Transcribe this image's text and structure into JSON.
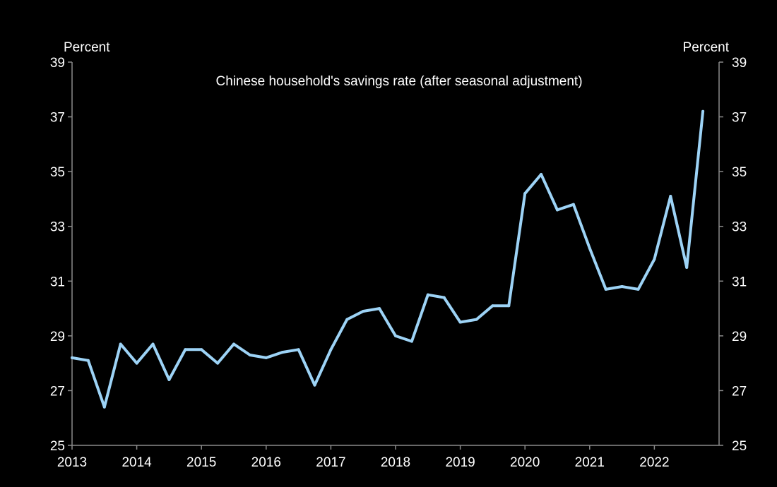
{
  "chart_data": {
    "type": "line",
    "title": "Chinese household's savings rate (after seasonal adjustment)",
    "left_unit": "Percent",
    "right_unit": "Percent",
    "ylim": [
      25,
      39
    ],
    "yticks": [
      25,
      27,
      29,
      31,
      33,
      35,
      37,
      39
    ],
    "xlim": [
      2013,
      2023
    ],
    "xticks": [
      "2013",
      "2014",
      "2015",
      "2016",
      "2017",
      "2018",
      "2019",
      "2020",
      "2021",
      "2022"
    ],
    "grid": false,
    "colors": {
      "background": "#000000",
      "line": "#9dd3f6",
      "axis": "#8a8a8a",
      "text": "#ffffff"
    },
    "series": [
      {
        "x": [
          "2013-Q1",
          "2013-Q2",
          "2013-Q3",
          "2013-Q4",
          "2014-Q1",
          "2014-Q2",
          "2014-Q3",
          "2014-Q4",
          "2015-Q1",
          "2015-Q2",
          "2015-Q3",
          "2015-Q4",
          "2016-Q1",
          "2016-Q2",
          "2016-Q3",
          "2016-Q4",
          "2017-Q1",
          "2017-Q2",
          "2017-Q3",
          "2017-Q4",
          "2018-Q1",
          "2018-Q2",
          "2018-Q3",
          "2018-Q4",
          "2019-Q1",
          "2019-Q2",
          "2019-Q3",
          "2019-Q4",
          "2020-Q1",
          "2020-Q2",
          "2020-Q3",
          "2020-Q4",
          "2021-Q1",
          "2021-Q2",
          "2021-Q3",
          "2021-Q4",
          "2022-Q1",
          "2022-Q2",
          "2022-Q3",
          "2022-Q4"
        ],
        "values": [
          28.2,
          28.1,
          26.4,
          28.7,
          28.0,
          28.7,
          27.4,
          28.5,
          28.5,
          28.0,
          28.7,
          28.3,
          28.2,
          28.4,
          28.5,
          27.2,
          28.5,
          29.6,
          29.9,
          30.0,
          29.0,
          28.8,
          30.5,
          30.4,
          29.5,
          29.6,
          30.1,
          30.1,
          34.2,
          34.9,
          33.6,
          33.8,
          32.2,
          30.7,
          30.8,
          30.7,
          31.8,
          34.1,
          31.5,
          37.2
        ]
      }
    ]
  }
}
